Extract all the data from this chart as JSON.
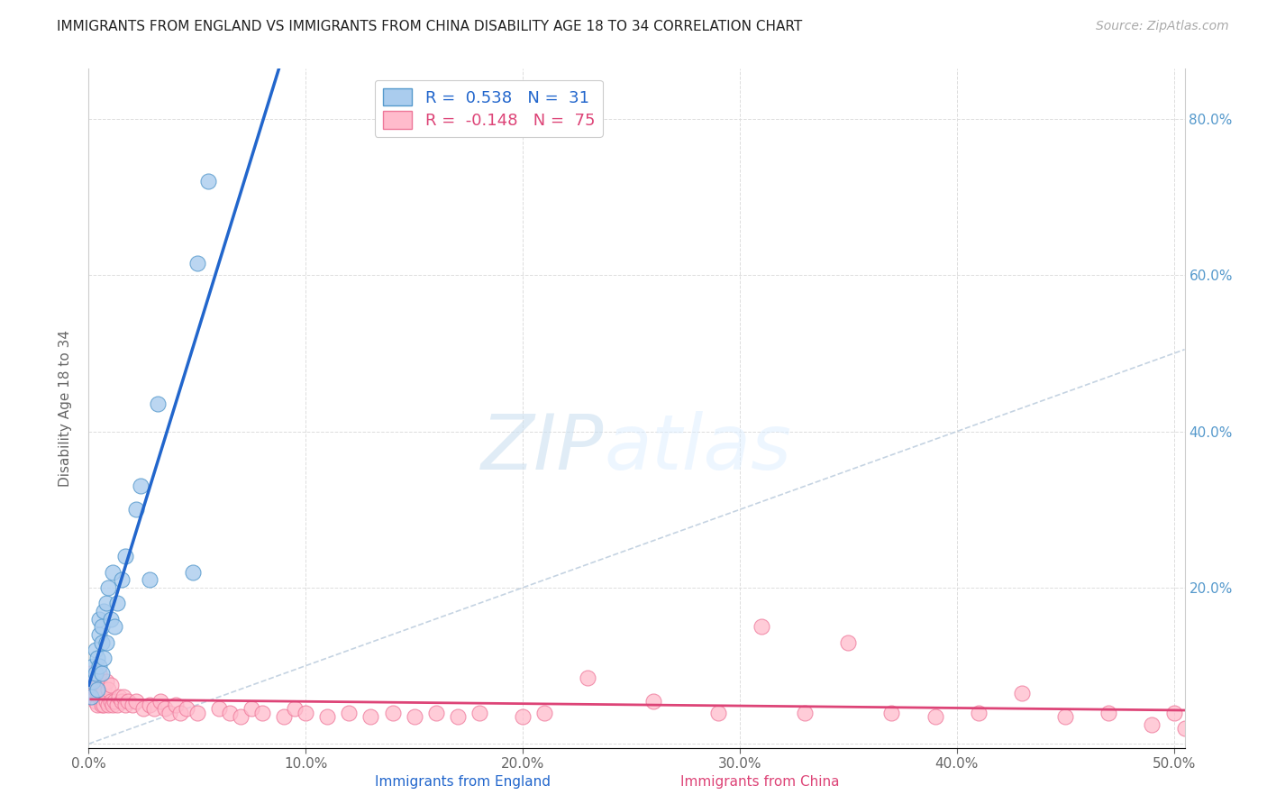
{
  "title": "IMMIGRANTS FROM ENGLAND VS IMMIGRANTS FROM CHINA DISABILITY AGE 18 TO 34 CORRELATION CHART",
  "source": "Source: ZipAtlas.com",
  "ylabel": "Disability Age 18 to 34",
  "xlim": [
    0.0,
    0.505
  ],
  "ylim": [
    -0.005,
    0.865
  ],
  "x_ticks": [
    0.0,
    0.1,
    0.2,
    0.3,
    0.4,
    0.5
  ],
  "x_tick_labels": [
    "0.0%",
    "10.0%",
    "20.0%",
    "30.0%",
    "40.0%",
    "50.0%"
  ],
  "y_ticks": [
    0.0,
    0.2,
    0.4,
    0.6,
    0.8
  ],
  "y_tick_labels_left": [
    "",
    "",
    "",
    "",
    ""
  ],
  "y_tick_labels_right": [
    "",
    "20.0%",
    "40.0%",
    "60.0%",
    "80.0%"
  ],
  "england_color": "#aaccee",
  "england_edge_color": "#5599cc",
  "china_color": "#ffbbcc",
  "china_edge_color": "#ee7799",
  "england_R": 0.538,
  "england_N": 31,
  "china_R": -0.148,
  "china_N": 75,
  "legend_england": "Immigrants from England",
  "legend_china": "Immigrants from China",
  "england_x": [
    0.001,
    0.002,
    0.002,
    0.003,
    0.003,
    0.004,
    0.004,
    0.005,
    0.005,
    0.005,
    0.006,
    0.006,
    0.006,
    0.007,
    0.007,
    0.008,
    0.008,
    0.009,
    0.01,
    0.011,
    0.012,
    0.013,
    0.015,
    0.017,
    0.022,
    0.024,
    0.028,
    0.032,
    0.048,
    0.05,
    0.055
  ],
  "england_y": [
    0.06,
    0.08,
    0.1,
    0.09,
    0.12,
    0.07,
    0.11,
    0.1,
    0.14,
    0.16,
    0.09,
    0.13,
    0.15,
    0.11,
    0.17,
    0.13,
    0.18,
    0.2,
    0.16,
    0.22,
    0.15,
    0.18,
    0.21,
    0.24,
    0.3,
    0.33,
    0.21,
    0.435,
    0.22,
    0.615,
    0.72
  ],
  "china_x": [
    0.001,
    0.001,
    0.002,
    0.002,
    0.003,
    0.003,
    0.003,
    0.004,
    0.004,
    0.005,
    0.005,
    0.005,
    0.006,
    0.006,
    0.007,
    0.007,
    0.008,
    0.008,
    0.009,
    0.009,
    0.01,
    0.01,
    0.011,
    0.012,
    0.013,
    0.014,
    0.015,
    0.016,
    0.017,
    0.018,
    0.02,
    0.022,
    0.025,
    0.028,
    0.03,
    0.033,
    0.035,
    0.037,
    0.04,
    0.042,
    0.045,
    0.05,
    0.06,
    0.065,
    0.07,
    0.075,
    0.08,
    0.09,
    0.095,
    0.1,
    0.11,
    0.12,
    0.13,
    0.14,
    0.15,
    0.16,
    0.17,
    0.18,
    0.2,
    0.21,
    0.23,
    0.26,
    0.29,
    0.31,
    0.33,
    0.35,
    0.37,
    0.39,
    0.41,
    0.43,
    0.45,
    0.47,
    0.49,
    0.5,
    0.505
  ],
  "china_y": [
    0.075,
    0.09,
    0.06,
    0.085,
    0.055,
    0.07,
    0.09,
    0.05,
    0.07,
    0.06,
    0.08,
    0.09,
    0.05,
    0.07,
    0.05,
    0.07,
    0.055,
    0.08,
    0.05,
    0.07,
    0.055,
    0.075,
    0.05,
    0.055,
    0.05,
    0.06,
    0.055,
    0.06,
    0.05,
    0.055,
    0.05,
    0.055,
    0.045,
    0.05,
    0.045,
    0.055,
    0.045,
    0.04,
    0.05,
    0.04,
    0.045,
    0.04,
    0.045,
    0.04,
    0.035,
    0.045,
    0.04,
    0.035,
    0.045,
    0.04,
    0.035,
    0.04,
    0.035,
    0.04,
    0.035,
    0.04,
    0.035,
    0.04,
    0.035,
    0.04,
    0.085,
    0.055,
    0.04,
    0.15,
    0.04,
    0.13,
    0.04,
    0.035,
    0.04,
    0.065,
    0.035,
    0.04,
    0.025,
    0.04,
    0.02
  ],
  "watermark_zip": "ZIP",
  "watermark_atlas": "atlas",
  "background_color": "#ffffff",
  "grid_color": "#dddddd",
  "title_color": "#222222",
  "axis_color": "#666666",
  "england_trend_color": "#2266cc",
  "china_trend_color": "#dd4477",
  "diag_line_color": "#bbccdd",
  "right_axis_color": "#5599cc"
}
